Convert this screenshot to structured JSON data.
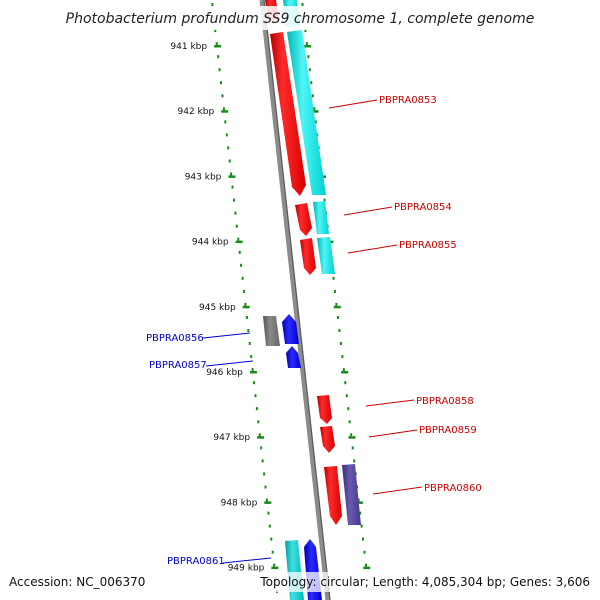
{
  "title": "Photobacterium profundum SS9 chromosome 1, complete genome",
  "accession": "Accession: NC_006370",
  "summary": "Topology: circular; Length: 4,085,304 bp; Genes: 3,606",
  "ruler": {
    "labels": [
      "941 kbp",
      "942 kbp",
      "943 kbp",
      "944 kbp",
      "945 kbp",
      "946 kbp",
      "947 kbp",
      "948 kbp",
      "949 kbp"
    ],
    "tick_color": "#1a8a1a"
  },
  "colors": {
    "forward_label": "#cc0000",
    "reverse_label": "#0000cc",
    "backbone": "#8c8c8c"
  },
  "genes": [
    {
      "name": "PBPRA0853",
      "strand": "forward"
    },
    {
      "name": "PBPRA0854",
      "strand": "forward"
    },
    {
      "name": "PBPRA0855",
      "strand": "forward"
    },
    {
      "name": "PBPRA0856",
      "strand": "reverse"
    },
    {
      "name": "PBPRA0857",
      "strand": "reverse"
    },
    {
      "name": "PBPRA0858",
      "strand": "forward"
    },
    {
      "name": "PBPRA0859",
      "strand": "forward"
    },
    {
      "name": "PBPRA0860",
      "strand": "forward"
    },
    {
      "name": "PBPRA0861",
      "strand": "reverse"
    }
  ]
}
